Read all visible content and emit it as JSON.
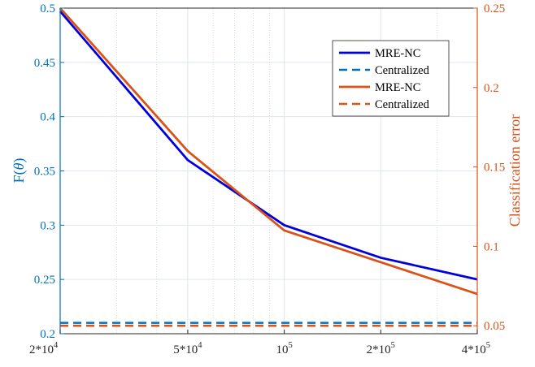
{
  "chart_data": {
    "type": "line",
    "x_scale": "log",
    "xlim": [
      20000,
      400000
    ],
    "x_major_ticks": [
      20000,
      50000,
      100000,
      200000,
      400000
    ],
    "x_tick_labels": [
      "2*10^4",
      "5*10^4",
      "10^5",
      "2*10^5",
      "4*10^5"
    ],
    "ylabel_left": "F(θ)",
    "ylim_left": [
      0.2,
      0.5
    ],
    "yticks_left": [
      "0.2",
      "0.25",
      "0.3",
      "0.35",
      "0.4",
      "0.45",
      "0.5"
    ],
    "ylabel_right": "Classification error",
    "ylim_right": [
      0.045,
      0.25
    ],
    "yticks_right": [
      "0.05",
      "0.1",
      "0.15",
      "0.2",
      "0.25"
    ],
    "grid": true,
    "legend_position": "top-right",
    "series": [
      {
        "name": "MRE-NC",
        "axis": "left",
        "style": "solid",
        "color": "#0000DD",
        "x": [
          20000,
          50000,
          100000,
          200000,
          400000
        ],
        "y": [
          0.497,
          0.36,
          0.3,
          0.27,
          0.25
        ]
      },
      {
        "name": "Centralized",
        "axis": "left",
        "style": "dashed",
        "color": "#0072BD",
        "x": [
          20000,
          400000
        ],
        "y": [
          0.21,
          0.21
        ]
      },
      {
        "name": "MRE-NC",
        "axis": "right",
        "style": "solid",
        "color": "#D95319",
        "x": [
          20000,
          50000,
          100000,
          200000,
          400000
        ],
        "y": [
          0.25,
          0.16,
          0.11,
          0.09,
          0.07
        ]
      },
      {
        "name": "Centralized",
        "axis": "right",
        "style": "dashed",
        "color": "#D95319",
        "x": [
          20000,
          400000
        ],
        "y": [
          0.05,
          0.05
        ]
      }
    ],
    "colors": {
      "left_axis": "#0072BD",
      "right_axis": "#D95319",
      "grid": "#DEE6EE",
      "minor_grid": "#C8CED6"
    }
  }
}
